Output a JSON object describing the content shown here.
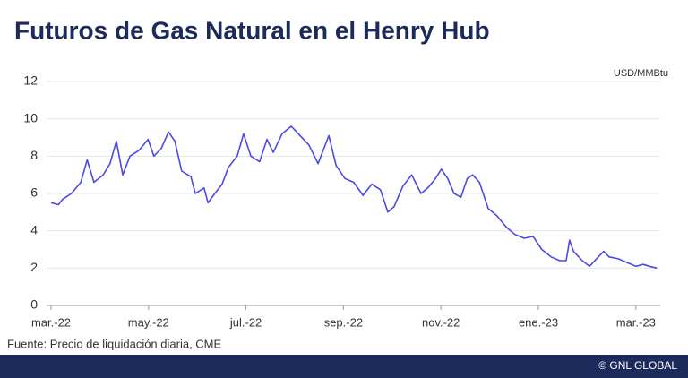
{
  "chart_data": {
    "type": "line",
    "title": "Futuros de Gas Natural en el Henry Hub",
    "y_unit": "USD/MMBtu",
    "source": "Fuente: Precio de liquidación diaria, CME",
    "credit": "© GNL GLOBAL",
    "x": [
      0,
      0.15,
      0.24,
      0.42,
      0.61,
      0.74,
      0.88,
      1.07,
      1.21,
      1.34,
      1.47,
      1.62,
      1.8,
      1.99,
      2.11,
      2.26,
      2.41,
      2.54,
      2.68,
      2.87,
      2.96,
      3.14,
      3.22,
      3.36,
      3.51,
      3.64,
      3.82,
      3.95,
      4.1,
      4.28,
      4.43,
      4.56,
      4.74,
      4.93,
      5.11,
      5.29,
      5.48,
      5.7,
      5.85,
      6.03,
      6.21,
      6.4,
      6.58,
      6.76,
      6.91,
      7.04,
      7.22,
      7.4,
      7.59,
      7.73,
      7.86,
      8.01,
      8.14,
      8.27,
      8.41,
      8.54,
      8.65,
      8.79,
      8.97,
      9.15,
      9.34,
      9.52,
      9.71,
      9.89,
      10.07,
      10.26,
      10.44,
      10.57,
      10.64,
      10.72,
      10.9,
      11.05,
      11.23,
      11.34,
      11.45,
      11.64,
      11.82,
      12.0,
      12.15,
      12.28,
      12.43
    ],
    "series": [
      {
        "name": "Henry Hub",
        "color": "#4a4ae6",
        "values": [
          5.5,
          5.4,
          5.7,
          6.0,
          6.6,
          7.8,
          6.6,
          7.0,
          7.6,
          8.8,
          7.0,
          8.0,
          8.3,
          8.9,
          8.0,
          8.4,
          9.3,
          8.8,
          7.2,
          6.9,
          6.0,
          6.3,
          5.5,
          6.0,
          6.5,
          7.4,
          8.0,
          9.2,
          8.0,
          7.7,
          8.9,
          8.2,
          9.2,
          9.6,
          9.1,
          8.6,
          7.6,
          9.1,
          7.5,
          6.8,
          6.6,
          5.9,
          6.5,
          6.2,
          5.0,
          5.3,
          6.4,
          7.0,
          6.0,
          6.3,
          6.7,
          7.3,
          6.8,
          6.0,
          5.8,
          6.8,
          7.0,
          6.6,
          5.2,
          4.8,
          4.2,
          3.8,
          3.6,
          3.7,
          3.0,
          2.6,
          2.4,
          2.4,
          3.5,
          2.9,
          2.4,
          2.1,
          2.6,
          2.9,
          2.6,
          2.5,
          2.3,
          2.1,
          2.2,
          2.1,
          2.0
        ]
      }
    ],
    "xlim": [
      0,
      12.5
    ],
    "xticks": [
      {
        "value": 0,
        "label": "mar.-22"
      },
      {
        "value": 2,
        "label": "may.-22"
      },
      {
        "value": 4,
        "label": "jul.-22"
      },
      {
        "value": 6,
        "label": "sep.-22"
      },
      {
        "value": 8,
        "label": "nov.-22"
      },
      {
        "value": 10,
        "label": "ene.-23"
      },
      {
        "value": 12,
        "label": "mar.-23"
      }
    ],
    "ylim": [
      0,
      12
    ],
    "yticks": [
      0,
      2,
      4,
      6,
      8,
      10,
      12
    ],
    "grid": true
  }
}
